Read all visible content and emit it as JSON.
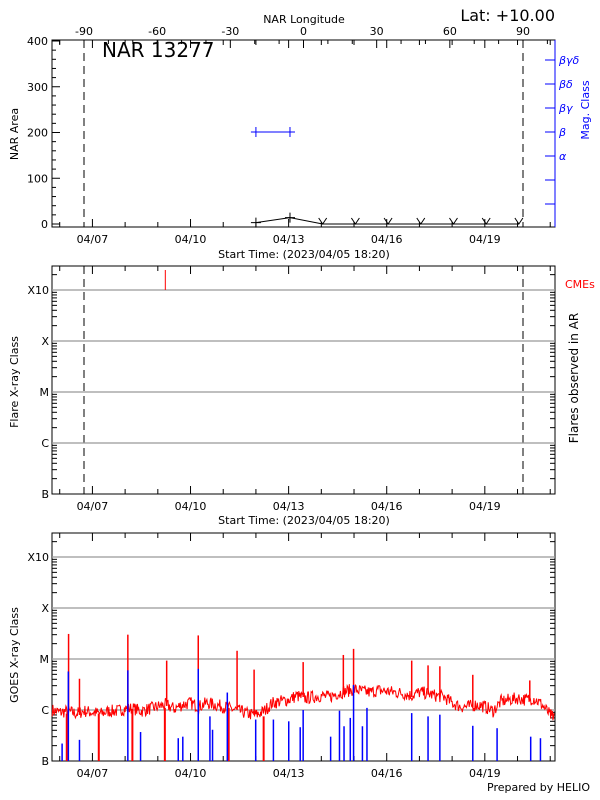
{
  "header": {
    "lat_label": "Lat: +10.00",
    "top_axis_title": "NAR Longitude",
    "region_title": "NAR 13277",
    "footer": "Prepared by HELIO"
  },
  "colors": {
    "mag_class": "#0000ff",
    "cme": "#ff0000",
    "goes_long": "#ff0000",
    "goes_short": "#0000ff",
    "grid": "#999999"
  },
  "chart_data": [
    {
      "type": "line",
      "panel": "area",
      "ylabel": "NAR Area",
      "y2label": "Mag. Class",
      "xlabel": "Start Time: (2023/04/05 18:20)",
      "ylim": [
        0,
        400
      ],
      "y_ticks": [
        "0",
        "100",
        "200",
        "300",
        "400"
      ],
      "x_ticks": [
        "04/07",
        "04/10",
        "04/13",
        "04/16",
        "04/19"
      ],
      "longitude_ticks": [
        "-90",
        "-60",
        "-30",
        "0",
        "30",
        "60",
        "90"
      ],
      "limb_longitudes": [
        -90,
        90
      ],
      "mag_class_ticks": [
        "α",
        "β",
        "βγ",
        "βδ",
        "βγδ"
      ],
      "area_series": [
        {
          "t": "2023-04-12T00:00",
          "area": 3
        },
        {
          "t": "2023-04-13T01:00",
          "area": 14
        },
        {
          "t": "2023-04-14T01:00",
          "area": 0
        },
        {
          "t": "2023-04-15T01:00",
          "area": 0
        },
        {
          "t": "2023-04-16T01:00",
          "area": 0
        },
        {
          "t": "2023-04-17T01:00",
          "area": 0
        },
        {
          "t": "2023-04-18T01:00",
          "area": 0
        },
        {
          "t": "2023-04-19T01:00",
          "area": 0
        },
        {
          "t": "2023-04-20T01:00",
          "area": 0
        }
      ],
      "mag_class_series": [
        {
          "t": "2023-04-12T00:00",
          "class": "β"
        },
        {
          "t": "2023-04-13T01:00",
          "class": "β"
        }
      ]
    },
    {
      "type": "scatter",
      "panel": "flares",
      "ylabel": "Flare X-ray Class",
      "y2label": "Flares observed in AR",
      "xlabel": "Start Time: (2023/04/05 18:20)",
      "y_ticks": [
        "B",
        "C",
        "M",
        "X",
        "X10"
      ],
      "y_scale": "log",
      "x_ticks": [
        "04/07",
        "04/10",
        "04/13",
        "04/16",
        "04/19"
      ],
      "grid": true,
      "flares": [],
      "cme_label": "CMEs",
      "cmes": [
        "2023-04-09T05:30"
      ]
    },
    {
      "type": "line",
      "panel": "goes",
      "ylabel": "GOES X-ray Class",
      "y_ticks": [
        "B",
        "C",
        "M",
        "X",
        "X10"
      ],
      "y_scale": "log",
      "ylim": [
        1e-07,
        0.003
      ],
      "x_ticks": [
        "04/07",
        "04/10",
        "04/13",
        "04/16",
        "04/19"
      ],
      "grid": true,
      "long_channel_baseline": [
        [
          "2023-04-05T18:00",
          9.5e-07
        ],
        [
          "2023-04-06T00:00",
          8.5e-07
        ],
        [
          "2023-04-06T06:00",
          9e-07
        ],
        [
          "2023-04-06T12:00",
          8e-07
        ],
        [
          "2023-04-06T18:00",
          9e-07
        ],
        [
          "2023-04-07T00:00",
          8.5e-07
        ],
        [
          "2023-04-07T06:00",
          8e-07
        ],
        [
          "2023-04-07T12:00",
          9e-07
        ],
        [
          "2023-04-07T18:00",
          9e-07
        ],
        [
          "2023-04-08T00:00",
          1e-06
        ],
        [
          "2023-04-08T06:00",
          1e-06
        ],
        [
          "2023-04-08T12:00",
          9e-07
        ],
        [
          "2023-04-08T18:00",
          1e-06
        ],
        [
          "2023-04-09T00:00",
          1.1e-06
        ],
        [
          "2023-04-09T06:00",
          1.2e-06
        ],
        [
          "2023-04-09T12:00",
          1e-06
        ],
        [
          "2023-04-09T18:00",
          1.2e-06
        ],
        [
          "2023-04-10T00:00",
          1.3e-06
        ],
        [
          "2023-04-10T06:00",
          1.1e-06
        ],
        [
          "2023-04-10T12:00",
          1.3e-06
        ],
        [
          "2023-04-10T18:00",
          1.2e-06
        ],
        [
          "2023-04-11T00:00",
          1.1e-06
        ],
        [
          "2023-04-11T06:00",
          1e-06
        ],
        [
          "2023-04-11T12:00",
          9e-07
        ],
        [
          "2023-04-11T18:00",
          8e-07
        ],
        [
          "2023-04-12T00:00",
          7.5e-07
        ],
        [
          "2023-04-12T06:00",
          9e-07
        ],
        [
          "2023-04-12T12:00",
          1.3e-06
        ],
        [
          "2023-04-12T18:00",
          1.4e-06
        ],
        [
          "2023-04-13T00:00",
          1.5e-06
        ],
        [
          "2023-04-13T06:00",
          1.8e-06
        ],
        [
          "2023-04-13T12:00",
          1.6e-06
        ],
        [
          "2023-04-13T18:00",
          1.7e-06
        ],
        [
          "2023-04-14T00:00",
          1.8e-06
        ],
        [
          "2023-04-14T06:00",
          1.7e-06
        ],
        [
          "2023-04-14T12:00",
          2e-06
        ],
        [
          "2023-04-14T18:00",
          2.2e-06
        ],
        [
          "2023-04-15T00:00",
          2.4e-06
        ],
        [
          "2023-04-15T06:00",
          2.2e-06
        ],
        [
          "2023-04-15T12:00",
          2.1e-06
        ],
        [
          "2023-04-15T18:00",
          2.3e-06
        ],
        [
          "2023-04-16T00:00",
          2.2e-06
        ],
        [
          "2023-04-16T06:00",
          2.1e-06
        ],
        [
          "2023-04-16T12:00",
          2e-06
        ],
        [
          "2023-04-16T18:00",
          1.8e-06
        ],
        [
          "2023-04-17T00:00",
          2.1e-06
        ],
        [
          "2023-04-17T06:00",
          2e-06
        ],
        [
          "2023-04-17T12:00",
          1.8e-06
        ],
        [
          "2023-04-17T18:00",
          1.7e-06
        ],
        [
          "2023-04-18T00:00",
          1.3e-06
        ],
        [
          "2023-04-18T06:00",
          1.1e-06
        ],
        [
          "2023-04-18T12:00",
          1.1e-06
        ],
        [
          "2023-04-18T18:00",
          1.2e-06
        ],
        [
          "2023-04-19T00:00",
          1.1e-06
        ],
        [
          "2023-04-19T06:00",
          9e-07
        ],
        [
          "2023-04-19T12:00",
          1.4e-06
        ],
        [
          "2023-04-19T18:00",
          1.5e-06
        ],
        [
          "2023-04-20T00:00",
          1.6e-06
        ],
        [
          "2023-04-20T06:00",
          1.5e-06
        ],
        [
          "2023-04-20T12:00",
          1.6e-06
        ],
        [
          "2023-04-20T18:00",
          1.2e-06
        ],
        [
          "2023-04-21T00:00",
          7.5e-07
        ],
        [
          "2023-04-21T03:00",
          7e-07
        ]
      ],
      "long_channel_peaks": [
        [
          "2023-04-06T06:30",
          3.1e-05
        ],
        [
          "2023-04-06T14:30",
          4.1e-06
        ],
        [
          "2023-04-08T02:00",
          3e-05
        ],
        [
          "2023-04-09T06:30",
          9.3e-06
        ],
        [
          "2023-04-10T05:40",
          2.9e-05
        ],
        [
          "2023-04-11T10:10",
          1.45e-05
        ],
        [
          "2023-04-11T22:40",
          6.2e-06
        ],
        [
          "2023-04-13T10:40",
          8.7e-06
        ],
        [
          "2023-04-14T16:10",
          1.2e-05
        ],
        [
          "2023-04-14T23:40",
          1.58e-05
        ],
        [
          "2023-04-16T18:20",
          9.3e-06
        ],
        [
          "2023-04-17T06:20",
          7.5e-06
        ],
        [
          "2023-04-17T15:00",
          7.2e-06
        ],
        [
          "2023-04-18T15:10",
          4.9e-06
        ],
        [
          "2023-04-20T09:00",
          3.8e-06
        ]
      ],
      "long_channel_dropouts": [
        "2023-04-06T05:10",
        "2023-04-07T04:40",
        "2023-04-08T05:20",
        "2023-04-09T05:10",
        "2023-04-11T04:00",
        "2023-04-12T05:40"
      ],
      "short_channel_peaks": [
        [
          "2023-04-06T01:45",
          2.2e-07
        ],
        [
          "2023-04-06T06:20",
          5.7e-06
        ],
        [
          "2023-04-06T14:30",
          2.6e-07
        ],
        [
          "2023-04-08T02:00",
          6e-06
        ],
        [
          "2023-04-08T11:20",
          3.7e-07
        ],
        [
          "2023-04-09T15:00",
          2.8e-07
        ],
        [
          "2023-04-09T18:20",
          3e-07
        ],
        [
          "2023-04-10T05:40",
          6.4e-06
        ],
        [
          "2023-04-10T14:15",
          7.5e-07
        ],
        [
          "2023-04-10T16:10",
          4.1e-07
        ],
        [
          "2023-04-11T03:00",
          2.2e-06
        ],
        [
          "2023-04-11T23:50",
          6.5e-07
        ],
        [
          "2023-04-12T12:50",
          6.5e-07
        ],
        [
          "2023-04-13T00:05",
          6e-07
        ],
        [
          "2023-04-13T08:30",
          4.6e-07
        ],
        [
          "2023-04-13T10:40",
          1e-06
        ],
        [
          "2023-04-14T06:50",
          3e-07
        ],
        [
          "2023-04-14T13:20",
          9.7e-07
        ],
        [
          "2023-04-14T16:40",
          4.8e-07
        ],
        [
          "2023-04-14T21:15",
          7e-07
        ],
        [
          "2023-04-14T23:40",
          3.1e-06
        ],
        [
          "2023-04-15T06:10",
          4.8e-07
        ],
        [
          "2023-04-15T09:30",
          1.1e-06
        ],
        [
          "2023-04-16T18:20",
          8.7e-07
        ],
        [
          "2023-04-17T06:20",
          7.5e-07
        ],
        [
          "2023-04-17T15:00",
          8.1e-07
        ],
        [
          "2023-04-18T15:10",
          4.9e-07
        ],
        [
          "2023-04-19T09:00",
          4.4e-07
        ],
        [
          "2023-04-20T09:40",
          3e-07
        ],
        [
          "2023-04-20T16:50",
          2.8e-07
        ]
      ]
    }
  ]
}
